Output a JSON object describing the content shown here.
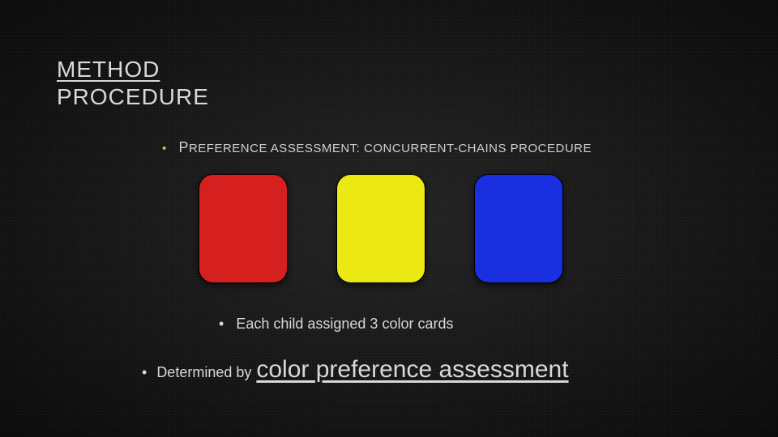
{
  "title": {
    "line1": "METHOD",
    "line2": "PROCEDURE"
  },
  "bullet1": {
    "prefix": "P",
    "rest": "REFERENCE ASSESSMENT: CONCURRENT-CHAINS PROCEDURE"
  },
  "cards": [
    {
      "color": "#d61f1f"
    },
    {
      "color": "#ece813"
    },
    {
      "color": "#1a2fe0"
    }
  ],
  "bullet2": "Each child assigned 3 color cards",
  "bullet3": {
    "lead": "Determined by",
    "emph": "color preference assessment"
  },
  "style": {
    "accent_bullet_color": "#b8cc3a",
    "text_color": "#d8d8d8"
  }
}
